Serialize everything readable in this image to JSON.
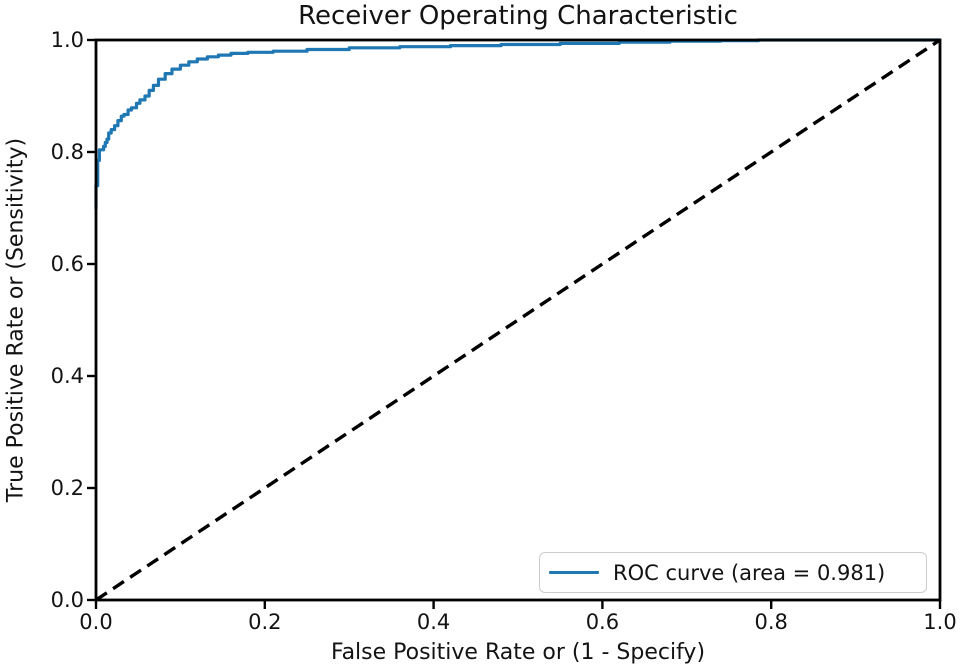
{
  "figure": {
    "background": "#ffffff",
    "text_color": "#131313",
    "spine_color": "#000000"
  },
  "chart_data": {
    "type": "line",
    "title": "Receiver Operating Characteristic",
    "xlabel": "False Positive Rate or (1 - Specify)",
    "ylabel": "True Positive Rate or (Sensitivity)",
    "xlim": [
      0.0,
      1.0
    ],
    "ylim": [
      0.0,
      1.0
    ],
    "x_ticks": [
      0.0,
      0.2,
      0.4,
      0.6,
      0.8,
      1.0
    ],
    "y_ticks": [
      0.0,
      0.2,
      0.4,
      0.6,
      0.8,
      1.0
    ],
    "x_tick_labels": [
      "0.0",
      "0.2",
      "0.4",
      "0.6",
      "0.8",
      "1.0"
    ],
    "y_tick_labels": [
      "0.0",
      "0.2",
      "0.4",
      "0.6",
      "0.8",
      "1.0"
    ],
    "grid": false,
    "legend_position": "lower right",
    "legend": [
      "ROC curve (area = 0.981)"
    ],
    "auc": 0.981,
    "series": [
      {
        "name": "ROC curve",
        "color": "#1f77b4",
        "style": "solid",
        "interpolation": "step-vertical-first",
        "points": [
          [
            0.0,
            0.698
          ],
          [
            0.0,
            0.735
          ],
          [
            0.002,
            0.74
          ],
          [
            0.002,
            0.778
          ],
          [
            0.004,
            0.785
          ],
          [
            0.004,
            0.8
          ],
          [
            0.009,
            0.804
          ],
          [
            0.011,
            0.81
          ],
          [
            0.013,
            0.817
          ],
          [
            0.015,
            0.823
          ],
          [
            0.018,
            0.834
          ],
          [
            0.022,
            0.84
          ],
          [
            0.026,
            0.847
          ],
          [
            0.03,
            0.856
          ],
          [
            0.033,
            0.864
          ],
          [
            0.038,
            0.867
          ],
          [
            0.042,
            0.875
          ],
          [
            0.048,
            0.879
          ],
          [
            0.052,
            0.887
          ],
          [
            0.058,
            0.893
          ],
          [
            0.063,
            0.9
          ],
          [
            0.068,
            0.91
          ],
          [
            0.074,
            0.919
          ],
          [
            0.082,
            0.93
          ],
          [
            0.09,
            0.94
          ],
          [
            0.1,
            0.948
          ],
          [
            0.11,
            0.955
          ],
          [
            0.12,
            0.961
          ],
          [
            0.132,
            0.966
          ],
          [
            0.145,
            0.97
          ],
          [
            0.16,
            0.973
          ],
          [
            0.18,
            0.976
          ],
          [
            0.21,
            0.978
          ],
          [
            0.25,
            0.98
          ],
          [
            0.3,
            0.983
          ],
          [
            0.36,
            0.986
          ],
          [
            0.42,
            0.988
          ],
          [
            0.48,
            0.99
          ],
          [
            0.55,
            0.992
          ],
          [
            0.62,
            0.994
          ],
          [
            0.68,
            0.996
          ],
          [
            0.74,
            0.998
          ],
          [
            0.785,
            0.999
          ],
          [
            0.812,
            1.0
          ],
          [
            1.0,
            1.0
          ]
        ]
      },
      {
        "name": "chance diagonal",
        "color": "#000000",
        "style": "dashed",
        "interpolation": "linear",
        "points": [
          [
            0.0,
            0.0
          ],
          [
            1.0,
            1.0
          ]
        ]
      }
    ]
  }
}
